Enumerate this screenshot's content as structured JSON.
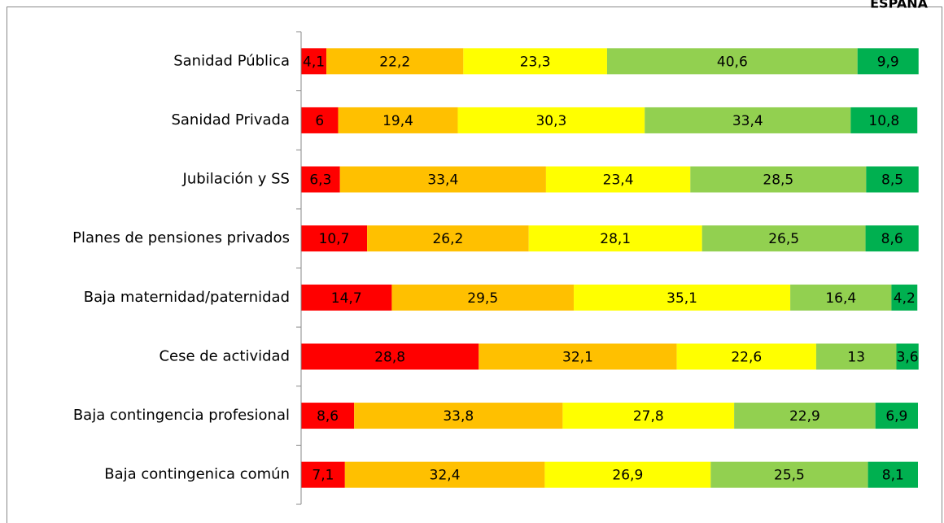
{
  "chart_data": {
    "type": "stacked_barh",
    "title": "ESPAÑA",
    "categories": [
      "Sanidad Pública",
      "Sanidad Privada",
      "Jubilación y SS",
      "Planes de pensiones privados",
      "Baja maternidad/paternidad",
      "Cese de actividad",
      "Baja contingencia profesional",
      "Baja contingenica común"
    ],
    "xlim": [
      0,
      100
    ],
    "series": [
      {
        "color": "#ff0000",
        "values": [
          4.1,
          6,
          6.3,
          10.7,
          14.7,
          28.8,
          8.6,
          7.1
        ],
        "value_labels": [
          "4,1",
          "6",
          "6,3",
          "10,7",
          "14,7",
          "28,8",
          "8,6",
          "7,1"
        ]
      },
      {
        "color": "#ffc000",
        "values": [
          22.2,
          19.4,
          33.4,
          26.2,
          29.5,
          32.1,
          33.8,
          32.4
        ],
        "value_labels": [
          "22,2",
          "19,4",
          "33,4",
          "26,2",
          "29,5",
          "32,1",
          "33,8",
          "32,4"
        ]
      },
      {
        "color": "#ffff00",
        "values": [
          23.3,
          30.3,
          23.4,
          28.1,
          35.1,
          22.6,
          27.8,
          26.9
        ],
        "value_labels": [
          "23,3",
          "30,3",
          "23,4",
          "28,1",
          "35,1",
          "22,6",
          "27,8",
          "26,9"
        ]
      },
      {
        "color": "#92d050",
        "values": [
          40.6,
          33.4,
          28.5,
          26.5,
          16.4,
          13,
          22.9,
          25.5
        ],
        "value_labels": [
          "40,6",
          "33,4",
          "28,5",
          "26,5",
          "16,4",
          "13",
          "22,9",
          "25,5"
        ]
      },
      {
        "color": "#00b050",
        "values": [
          9.9,
          10.8,
          8.5,
          8.6,
          4.2,
          3.6,
          6.9,
          8.1
        ],
        "value_labels": [
          "9,9",
          "10,8",
          "8,5",
          "8,6",
          "4,2",
          "3,6",
          "6,9",
          "8,1"
        ]
      }
    ]
  }
}
